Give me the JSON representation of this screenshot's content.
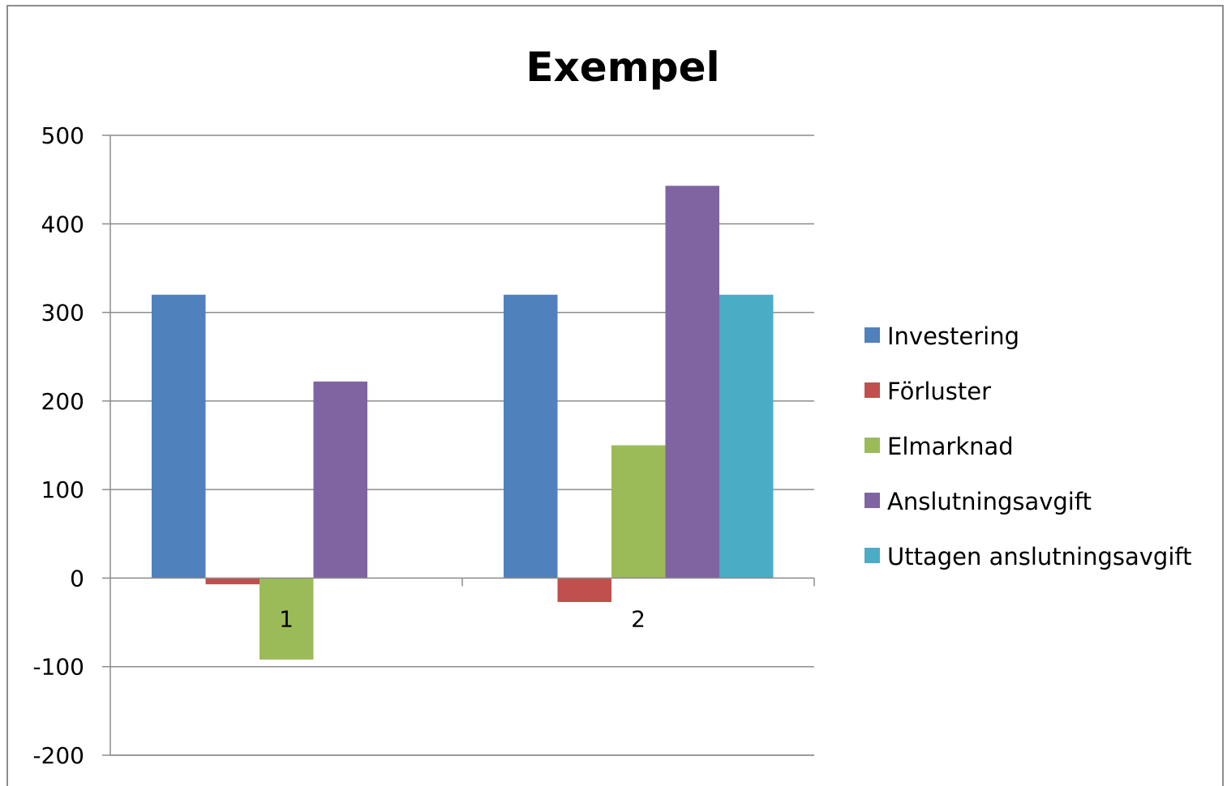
{
  "chart_data": {
    "type": "bar",
    "title": "Exempel",
    "xlabel": "",
    "ylabel": "",
    "categories": [
      "1",
      "2"
    ],
    "ylim": [
      -200,
      500
    ],
    "yticks": [
      500,
      400,
      300,
      200,
      100,
      0,
      -100,
      -200
    ],
    "grid": true,
    "legend_position": "right",
    "series": [
      {
        "name": "Investering",
        "color": "#4F81BD",
        "values": [
          320,
          320
        ]
      },
      {
        "name": "Förluster",
        "color": "#C0504D",
        "values": [
          -7,
          -27
        ]
      },
      {
        "name": "Elmarknad",
        "color": "#9BBB59",
        "values": [
          -92,
          150
        ]
      },
      {
        "name": "Anslutningsavgift",
        "color": "#8064A2",
        "values": [
          222,
          443
        ]
      },
      {
        "name": "Uttagen anslutningsavgift",
        "color": "#4BACC6",
        "values": [
          0,
          320
        ]
      }
    ]
  }
}
